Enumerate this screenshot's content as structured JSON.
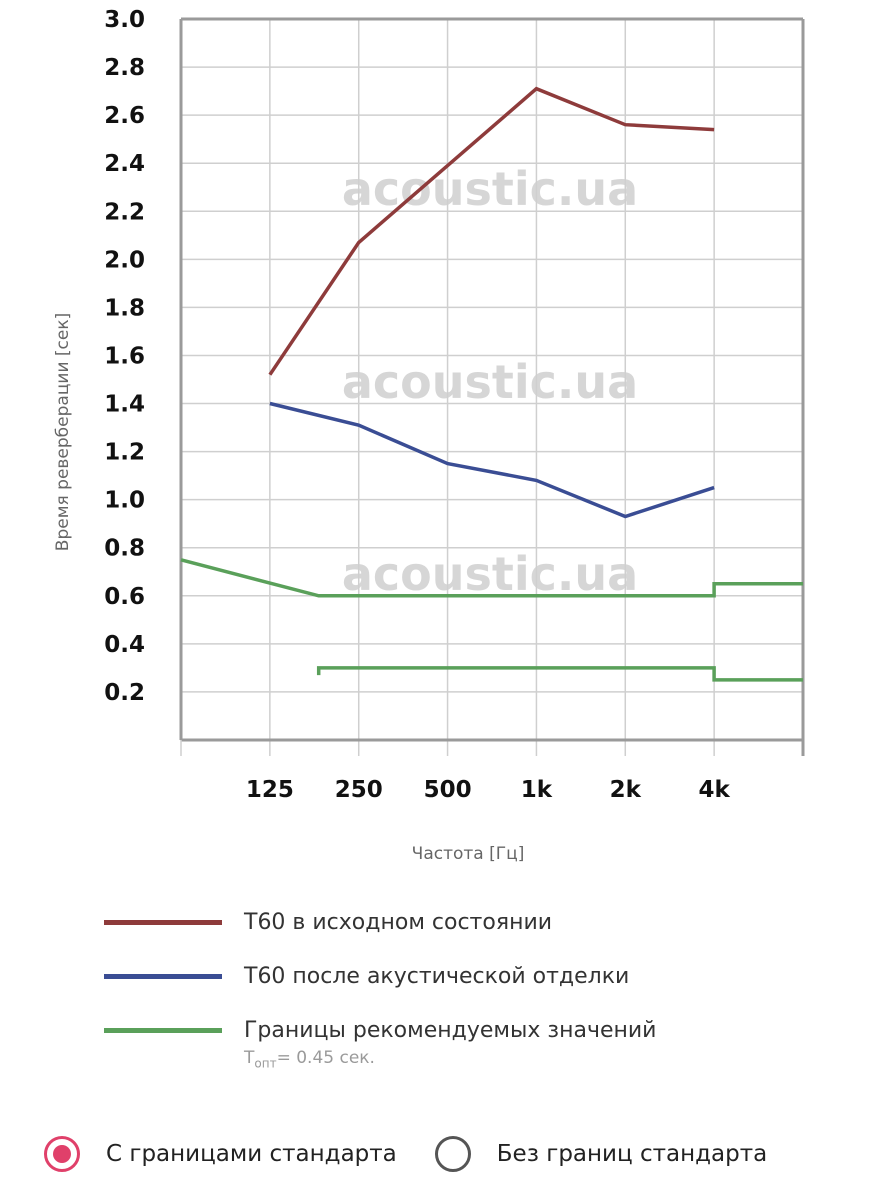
{
  "chart_data": {
    "type": "line",
    "xlabel": "Частота [Гц]",
    "ylabel": "Время реверберации [сек]",
    "categories": [
      "125",
      "250",
      "500",
      "1k",
      "2k",
      "4k"
    ],
    "ylim": [
      0,
      3.0
    ],
    "yticks": [
      "3.0",
      "2.8",
      "2.6",
      "2.4",
      "2.2",
      "2.0",
      "1.8",
      "1.6",
      "1.4",
      "1.2",
      "1.0",
      "0.8",
      "0.6",
      "0.4",
      "0.2"
    ],
    "grid": true,
    "watermark": "acoustic.ua",
    "series": [
      {
        "name": "T60 в исходном состоянии",
        "color": "#8e3b3b",
        "x": [
          1,
          2,
          3,
          4,
          5,
          6
        ],
        "values": [
          1.52,
          2.07,
          2.39,
          2.71,
          2.56,
          2.54
        ]
      },
      {
        "name": "T60 после акустической отделки",
        "color": "#3a4d94",
        "x": [
          1,
          2,
          3,
          4,
          5,
          6
        ],
        "values": [
          1.4,
          1.31,
          1.15,
          1.08,
          0.93,
          1.05
        ]
      },
      {
        "name": "Границы рекомендуемых значений",
        "color": "#5aa05a",
        "x": [
          0,
          1.55,
          6,
          6,
          7
        ],
        "values": [
          0.75,
          0.6,
          0.6,
          0.65,
          0.65
        ]
      },
      {
        "name": "",
        "color": "#5aa05a",
        "x": [
          1.55,
          1.55,
          6,
          6,
          7
        ],
        "values": [
          0.27,
          0.3,
          0.3,
          0.25,
          0.25
        ]
      }
    ]
  },
  "legend": {
    "items": [
      {
        "label": "T60 в исходном состоянии",
        "color": "#8e3b3b"
      },
      {
        "label": "T60 после акустической отделки",
        "color": "#3a4d94"
      },
      {
        "label": "Границы рекомендуемых значений",
        "color": "#5aa05a"
      }
    ],
    "note_prefix": "T",
    "note_sub": "опт",
    "note_suffix": "= 0.45 сек."
  },
  "options": {
    "with_standard": "С границами стандарта",
    "without_standard": "Без границ стандарта",
    "selected": "with_standard"
  },
  "colors": {
    "accent": "#e0406a"
  }
}
